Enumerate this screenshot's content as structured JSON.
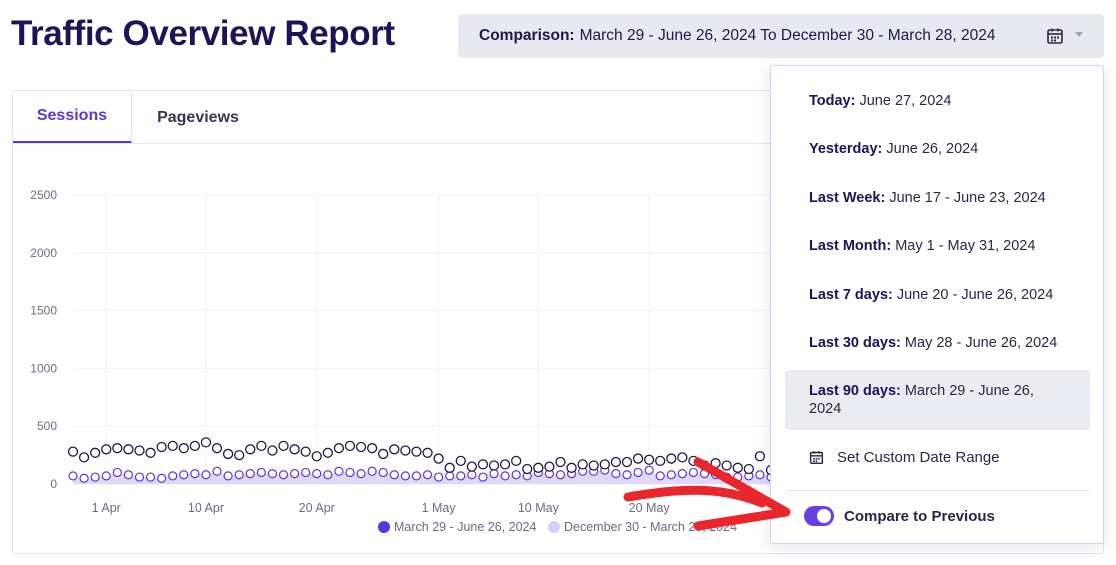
{
  "header": {
    "title": "Traffic Overview Report",
    "comparison_label": "Comparison:",
    "comparison_value": "March 29 - June 26, 2024 To December 30 - March 28, 2024"
  },
  "tabs": [
    {
      "label": "Sessions",
      "active": true
    },
    {
      "label": "Pageviews",
      "active": false
    }
  ],
  "dropdown": {
    "options": [
      {
        "label": "Today:",
        "value": "June 27, 2024"
      },
      {
        "label": "Yesterday:",
        "value": "June 26, 2024"
      },
      {
        "label": "Last Week:",
        "value": "June 17 - June 23, 2024"
      },
      {
        "label": "Last Month:",
        "value": "May 1 - May 31, 2024"
      },
      {
        "label": "Last 7 days:",
        "value": "June 20 - June 26, 2024"
      },
      {
        "label": "Last 30 days:",
        "value": "May 28 - June 26, 2024"
      },
      {
        "label": "Last 90 days:",
        "value": "March 29 - June 26, 2024",
        "selected": true
      }
    ],
    "custom_range": "Set Custom Date Range",
    "compare_label": "Compare to Previous",
    "compare_enabled": true
  },
  "colors": {
    "accent": "#5a37d8",
    "current_series": "#5a37d8",
    "previous_series": "#d9cdf7",
    "annotation_arrow": "#e8262b"
  },
  "chart_data": {
    "type": "scatter",
    "ylim": [
      0,
      2500
    ],
    "yticks": [
      "0",
      "500",
      "1000",
      "1500",
      "2000",
      "2500"
    ],
    "xticks": [
      "1 Apr",
      "10 Apr",
      "20 Apr",
      "1 May",
      "10 May",
      "20 May"
    ],
    "grid": true,
    "legend_position": "bottom",
    "series": [
      {
        "name": "March 29 - June 26, 2024",
        "values": [
          280,
          230,
          270,
          300,
          310,
          300,
          290,
          270,
          320,
          330,
          310,
          330,
          360,
          310,
          260,
          250,
          300,
          330,
          290,
          330,
          300,
          280,
          240,
          270,
          310,
          330,
          320,
          310,
          260,
          300,
          290,
          280,
          270,
          220,
          140,
          200,
          150,
          170,
          160,
          170,
          200,
          130,
          140,
          150,
          190,
          140,
          170,
          160,
          170,
          190,
          190,
          220,
          210,
          200,
          220,
          230,
          200,
          160,
          180,
          160,
          140,
          130,
          240,
          120
        ]
      },
      {
        "name": "December 30 - March 28, 2024",
        "values": [
          70,
          50,
          60,
          70,
          100,
          80,
          60,
          60,
          50,
          70,
          80,
          90,
          80,
          110,
          70,
          80,
          90,
          100,
          90,
          80,
          90,
          100,
          90,
          80,
          110,
          100,
          90,
          110,
          100,
          80,
          70,
          70,
          80,
          60,
          70,
          70,
          80,
          60,
          90,
          70,
          80,
          70,
          100,
          90,
          80,
          90,
          110,
          110,
          120,
          90,
          80,
          100,
          120,
          70,
          80,
          90,
          100,
          90,
          80,
          60,
          60,
          70,
          80,
          60
        ]
      }
    ]
  }
}
